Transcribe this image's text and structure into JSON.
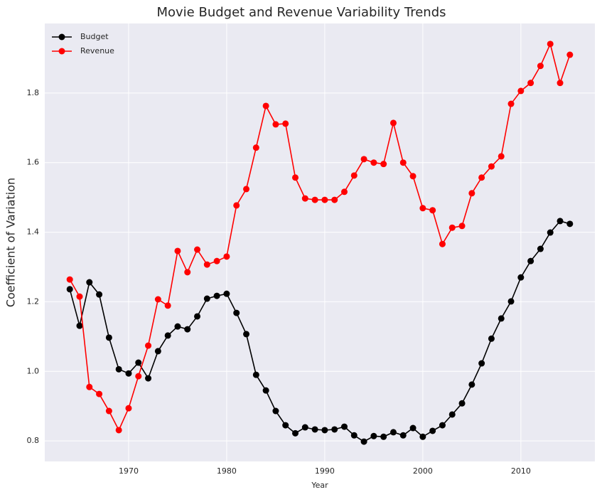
{
  "chart_data": {
    "type": "line",
    "title": "Movie Budget and Revenue Variability Trends",
    "x_label": "Year",
    "y_label": "Coefficient of Variation",
    "x": [
      1964,
      1965,
      1966,
      1967,
      1968,
      1969,
      1970,
      1971,
      1972,
      1973,
      1974,
      1975,
      1976,
      1977,
      1978,
      1979,
      1980,
      1981,
      1982,
      1983,
      1984,
      1985,
      1986,
      1987,
      1988,
      1989,
      1990,
      1991,
      1992,
      1993,
      1994,
      1995,
      1996,
      1997,
      1998,
      1999,
      2000,
      2001,
      2002,
      2003,
      2004,
      2005,
      2006,
      2007,
      2008,
      2009,
      2010,
      2011,
      2012,
      2013,
      2014,
      2015
    ],
    "series": [
      {
        "name": "Budget",
        "color": "#000000",
        "values": [
          1.236,
          1.131,
          1.256,
          1.221,
          1.097,
          1.006,
          0.994,
          1.025,
          0.98,
          1.058,
          1.103,
          1.129,
          1.121,
          1.158,
          1.209,
          1.217,
          1.223,
          1.168,
          1.107,
          0.99,
          0.945,
          0.886,
          0.845,
          0.822,
          0.839,
          0.833,
          0.831,
          0.833,
          0.841,
          0.816,
          0.798,
          0.814,
          0.812,
          0.825,
          0.816,
          0.837,
          0.812,
          0.829,
          0.845,
          0.876,
          0.908,
          0.962,
          1.023,
          1.094,
          1.152,
          1.201,
          1.27,
          1.317,
          1.352,
          1.399,
          1.432,
          1.424
        ]
      },
      {
        "name": "Revenue",
        "color": "#ff0000",
        "values": [
          1.264,
          1.215,
          0.955,
          0.935,
          0.886,
          0.831,
          0.894,
          0.986,
          1.074,
          1.207,
          1.189,
          1.346,
          1.285,
          1.35,
          1.307,
          1.317,
          1.33,
          1.477,
          1.524,
          1.643,
          1.763,
          1.71,
          1.712,
          1.557,
          1.497,
          1.493,
          1.493,
          1.493,
          1.516,
          1.563,
          1.61,
          1.6,
          1.596,
          1.714,
          1.6,
          1.561,
          1.469,
          1.463,
          1.366,
          1.413,
          1.418,
          1.512,
          1.557,
          1.589,
          1.618,
          1.769,
          1.806,
          1.829,
          1.878,
          1.941,
          1.829,
          1.91
        ]
      }
    ],
    "xlim": [
      1961.45,
      2017.55
    ],
    "ylim": [
      0.741,
      2.0
    ],
    "xticks": [
      1970,
      1980,
      1990,
      2000,
      2010
    ],
    "yticks": [
      0.8,
      {
        "value": 1,
        "label": "1.0"
      },
      1.2,
      1.4,
      1.6,
      1.8
    ],
    "grid": true,
    "legend": "upper left"
  }
}
